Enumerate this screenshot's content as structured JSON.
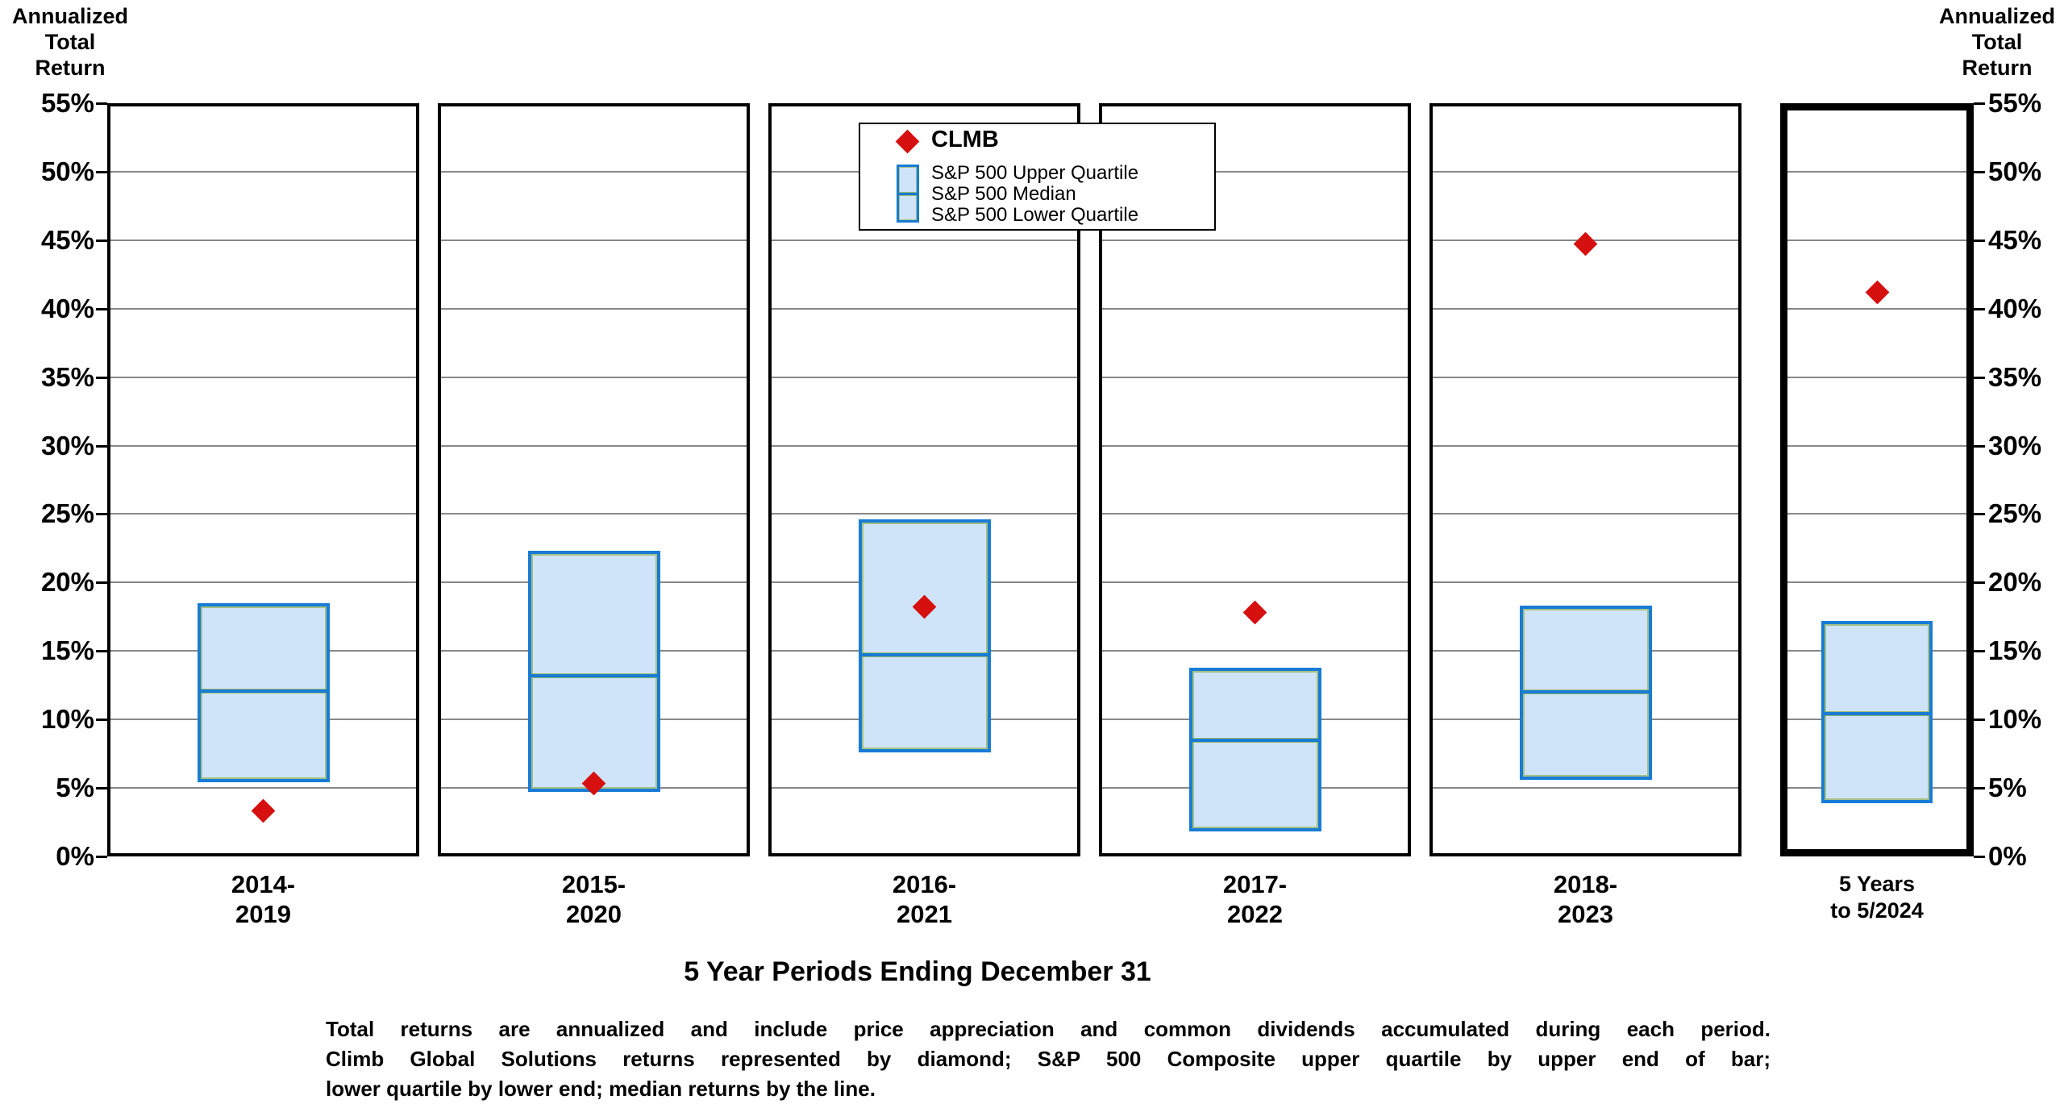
{
  "colors": {
    "box_fill": "#cfe4f8",
    "box_border": "#187cd6",
    "diamond": "#d60f0f",
    "grid": "#888888"
  },
  "ui": {
    "axis_title_left": "Annualized\nTotal\nReturn",
    "axis_title_right": "Annualized\nTotal\nReturn",
    "ytick_labels": [
      "55%",
      "50%",
      "45%",
      "40%",
      "35%",
      "30%",
      "25%",
      "20%",
      "15%",
      "10%",
      "5%",
      "0%"
    ],
    "x_labels": [
      "2014-\n2019",
      "2015-\n2020",
      "2016-\n2021",
      "2017-\n2022",
      "2018-\n2023",
      "5 Years\nto 5/2024"
    ],
    "x_axis_title": "5 Year Periods Ending December 31"
  },
  "legend": {
    "clmb_label": "CLMB",
    "items": [
      "S&P 500 Upper Quartile",
      "S&P 500 Median",
      "S&P 500 Lower Quartile"
    ]
  },
  "footer": {
    "lines": [
      "Total returns are annualized and include price appreciation and common dividends accumulated during each period.",
      "Climb Global Solutions returns represented by diamond; S&P 500 Composite upper quartile by upper end of bar;",
      "lower quartile by lower end; median returns by the line."
    ]
  },
  "chart_data": {
    "type": "box",
    "title": "5 Year Periods Ending December 31",
    "ylabel": "Annualized Total Return",
    "ylim": [
      0,
      55
    ],
    "ytick_step": 5,
    "ytick_format": "percent",
    "grid": true,
    "legend_position": "top-center",
    "categories": [
      "2014-2019",
      "2015-2020",
      "2016-2021",
      "2017-2022",
      "2018-2023",
      "5 Years to 5/2024"
    ],
    "highlighted_category_index": 5,
    "series": [
      {
        "name": "CLMB",
        "type": "scatter",
        "marker": "diamond",
        "color": "#d60f0f",
        "values": [
          3.3,
          5.3,
          18.2,
          17.8,
          44.7,
          41.2
        ]
      },
      {
        "name": "S&P 500 Upper Quartile",
        "type": "box-top",
        "values": [
          18.5,
          22.3,
          24.6,
          13.8,
          18.3,
          17.2
        ]
      },
      {
        "name": "S&P 500 Median",
        "type": "box-median",
        "values": [
          12.1,
          13.2,
          14.7,
          8.5,
          12.0,
          10.4
        ]
      },
      {
        "name": "S&P 500 Lower Quartile",
        "type": "box-bottom",
        "values": [
          5.4,
          4.7,
          7.6,
          1.8,
          5.6,
          3.9
        ]
      }
    ]
  }
}
